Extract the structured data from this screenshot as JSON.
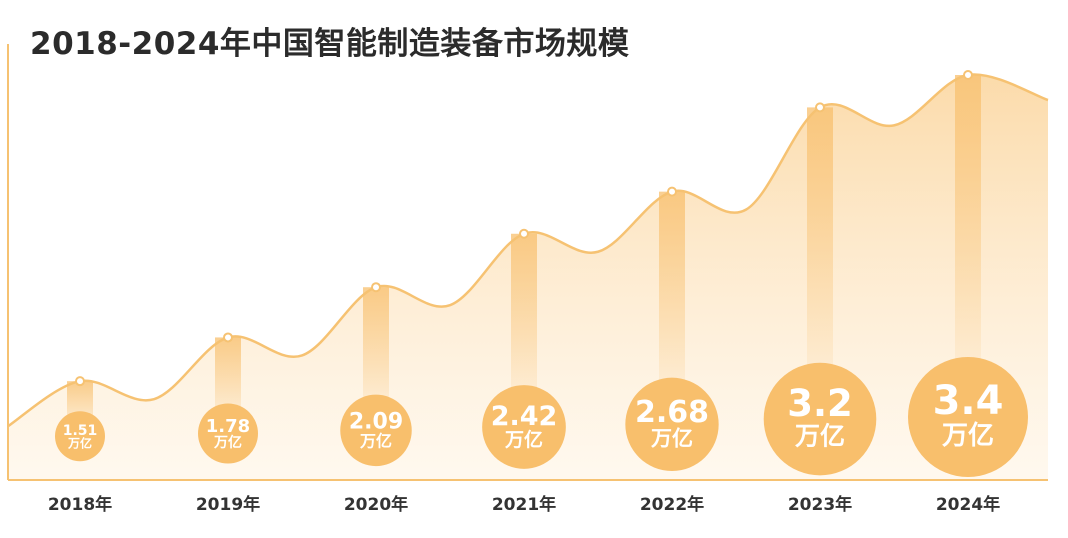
{
  "chart_data": {
    "type": "area",
    "title": "2018-2024年中国智能制造装备市场规模",
    "categories": [
      "2018年",
      "2019年",
      "2020年",
      "2021年",
      "2022年",
      "2023年",
      "2024年"
    ],
    "series": [
      {
        "values": [
          1.51,
          1.78,
          2.09,
          2.42,
          2.68,
          3.2,
          3.4
        ],
        "data_labels": [
          "1.51",
          "1.78",
          "2.09",
          "2.42",
          "2.68",
          "3.2",
          "3.4"
        ]
      }
    ],
    "unit": "万亿",
    "ylim": [
      0.9,
      3.55
    ],
    "grid": false,
    "legend": "none"
  },
  "colors": {
    "line": "#f6c272",
    "area_top": "#fbd9a6",
    "area_bottom": "#fff4e4",
    "bubble": "#f8bf6c",
    "marker_fill": "#ffffff",
    "axis": "#f6c272"
  }
}
